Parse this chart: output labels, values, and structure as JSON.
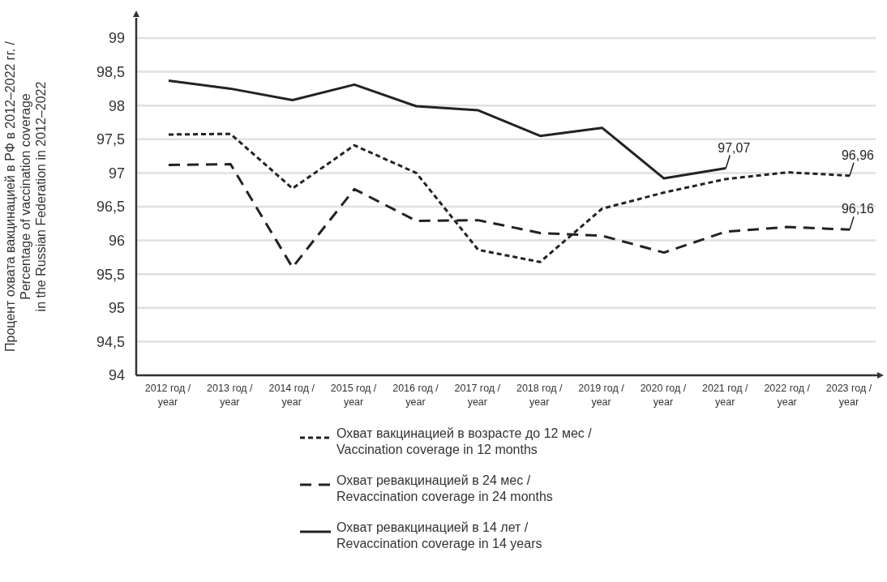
{
  "chart_data": {
    "type": "line",
    "ylabel": "Процент охвата вакцинацией в РФ в 2012–2022 гг. /\nPercentage of vaccination coverage\nin the Russian Federation in 2012–2022",
    "categories": [
      "2012 год / year",
      "2013 год / year",
      "2014 год / year",
      "2015 год / year",
      "2016 год / year",
      "2017 год / year",
      "2018 год / year",
      "2019 год / year",
      "2020 год / year",
      "2021 год / year",
      "2022 год / year",
      "2023 год / year"
    ],
    "series": [
      {
        "name": "Охват вакцинацией в возрасте до 12 мес / Vaccination coverage in 12 months",
        "color": "#222222",
        "line_style": "dotted",
        "values": [
          97.57,
          97.58,
          96.77,
          97.41,
          97.0,
          95.86,
          95.68,
          96.47,
          96.71,
          96.91,
          97.01,
          96.96
        ],
        "value_labels": [
          null,
          null,
          null,
          null,
          null,
          null,
          null,
          null,
          null,
          null,
          null,
          "96,96"
        ]
      },
      {
        "name": "Охват ревакцинацией в 24 мес / Revaccination coverage in 24 months",
        "color": "#222222",
        "line_style": "dashed",
        "values": [
          97.12,
          97.13,
          95.6,
          96.76,
          96.29,
          96.3,
          96.11,
          96.07,
          95.82,
          96.13,
          96.2,
          96.16
        ],
        "value_labels": [
          null,
          null,
          null,
          null,
          null,
          null,
          null,
          null,
          null,
          null,
          null,
          "96,16"
        ]
      },
      {
        "name": "Охват ревакцинацией в 14 лет / Revaccination coverage in 14 years",
        "color": "#222222",
        "line_style": "solid",
        "values": [
          98.37,
          98.25,
          98.08,
          98.31,
          97.99,
          97.93,
          97.55,
          97.67,
          96.92,
          97.07,
          null,
          null
        ],
        "value_labels": [
          null,
          null,
          null,
          null,
          null,
          null,
          null,
          null,
          null,
          "97,07",
          null,
          null
        ]
      }
    ],
    "ylim": [
      94,
      99.3
    ],
    "yticks": [
      94,
      {
        "value": 94.5,
        "label": "94,5"
      },
      95,
      {
        "value": 95.5,
        "label": "95,5"
      },
      96,
      {
        "value": 96.5,
        "label": "96,5"
      },
      97,
      {
        "value": 97.5,
        "label": "97,5"
      },
      98,
      {
        "value": 98.5,
        "label": "98,5"
      },
      99
    ],
    "grid": "y",
    "legend": "bottom"
  }
}
